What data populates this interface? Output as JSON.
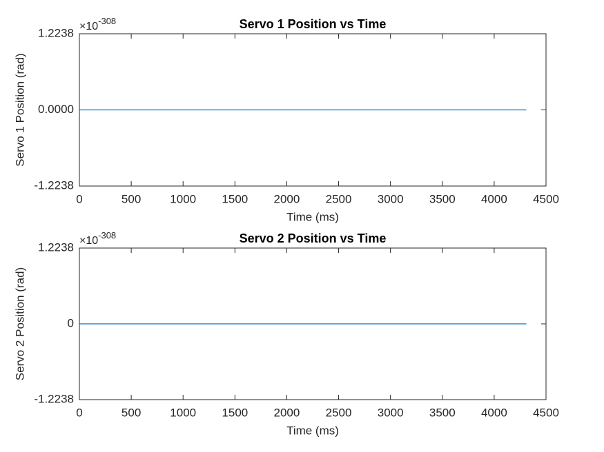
{
  "chart_data": [
    {
      "type": "line",
      "title": "Servo 1 Position vs Time",
      "xlabel": "Time (ms)",
      "ylabel": "Servo 1 Position (rad)",
      "x": [
        0,
        4310
      ],
      "values": [
        0,
        0
      ],
      "color": "#0072BD",
      "xlim": [
        0,
        4500
      ],
      "xticks": [
        0,
        500,
        1000,
        1500,
        2000,
        2500,
        3000,
        3500,
        4000,
        4500
      ],
      "ylim": [
        -1.2238,
        1.2238
      ],
      "yticks": [
        -1.2238,
        {
          "value": 0,
          "label": "0.0000"
        },
        1.2238
      ],
      "y_multiplier": {
        "base": "×10",
        "exponent": "-308"
      },
      "grid": false
    },
    {
      "type": "line",
      "title": "Servo 2 Position vs Time",
      "xlabel": "Time (ms)",
      "ylabel": "Servo 2 Position (rad)",
      "x": [
        0,
        4310
      ],
      "values": [
        0,
        0
      ],
      "color": "#0072BD",
      "xlim": [
        0,
        4500
      ],
      "xticks": [
        0,
        500,
        1000,
        1500,
        2000,
        2500,
        3000,
        3500,
        4000,
        4500
      ],
      "ylim": [
        -1.2238,
        1.2238
      ],
      "yticks": [
        -1.2238,
        0,
        1.2238
      ],
      "y_multiplier": {
        "base": "×10",
        "exponent": "-308"
      },
      "grid": false
    }
  ]
}
